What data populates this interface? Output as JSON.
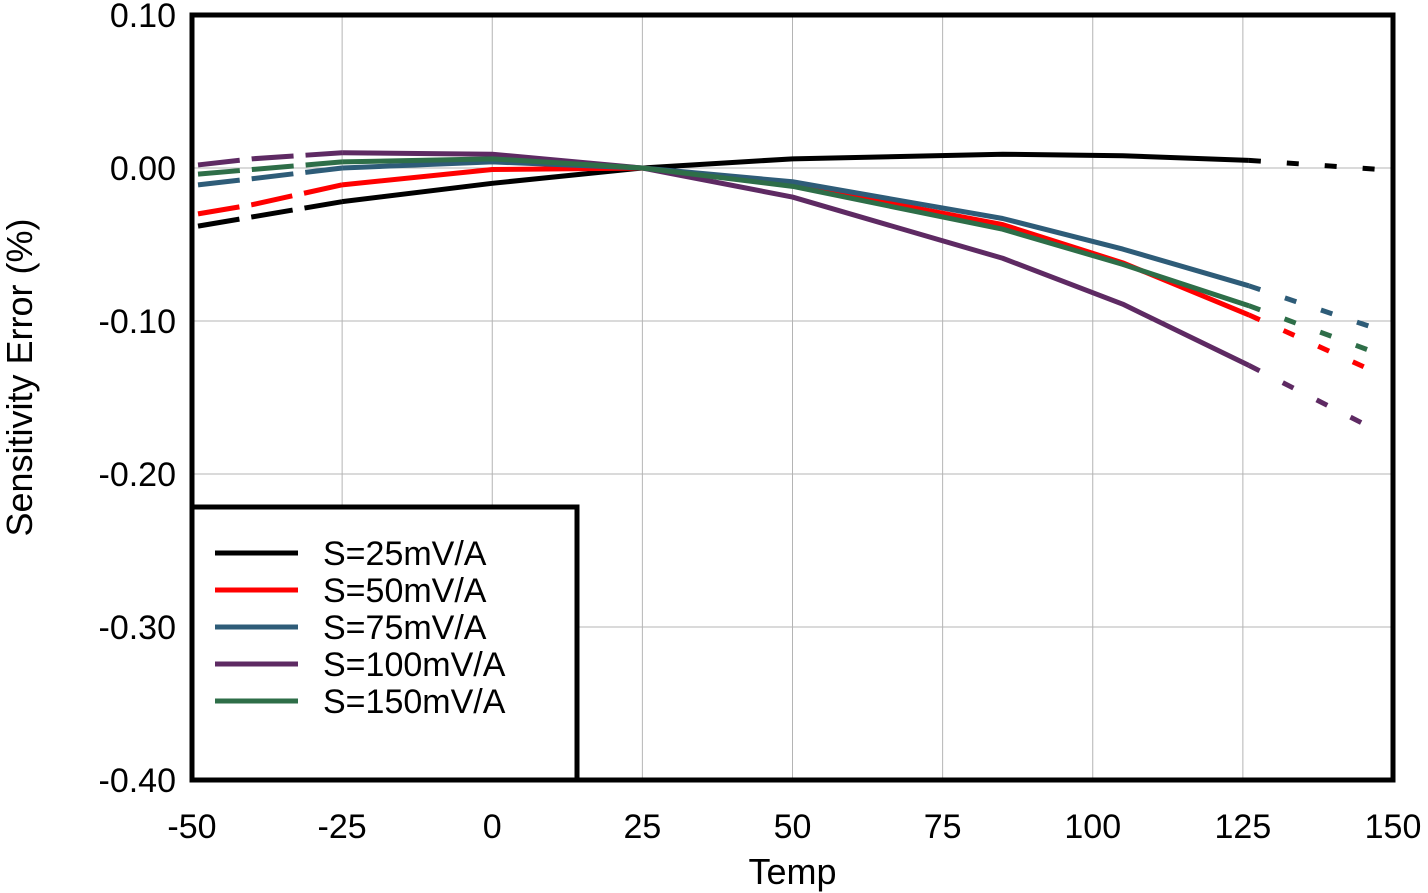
{
  "chart_data": {
    "type": "line",
    "title": "",
    "xlabel": "Temp",
    "ylabel": "Sensitivity Error (%)",
    "xlim": [
      -50,
      150
    ],
    "ylim": [
      -0.4,
      0.1
    ],
    "x_ticks": [
      -50,
      -25,
      0,
      25,
      50,
      75,
      100,
      125,
      150
    ],
    "x_tick_labels": [
      "-50",
      "-25",
      "0",
      "25",
      "50",
      "75",
      "100",
      "125",
      "150"
    ],
    "y_ticks": [
      0.1,
      0.0,
      -0.1,
      -0.2,
      -0.3,
      -0.4
    ],
    "y_tick_labels": [
      "0.10",
      "0.00",
      "-0.10",
      "-0.20",
      "-0.30",
      "-0.40"
    ],
    "grid": true,
    "legend_position": "bottom-left",
    "series": [
      {
        "name": "S=25mV/A",
        "color": "#000000",
        "solid": {
          "x": [
            -25,
            0,
            25,
            50,
            85,
            105,
            126
          ],
          "y": [
            -0.022,
            -0.01,
            0.0,
            0.006,
            0.009,
            0.008,
            0.005
          ]
        },
        "extrap_low": {
          "x": [
            -49,
            -40
          ],
          "y": [
            -0.038,
            -0.032
          ]
        },
        "extrap_high": {
          "x": [
            126,
            148
          ],
          "y": [
            0.005,
            -0.001
          ]
        }
      },
      {
        "name": "S=50mV/A",
        "color": "#ff0000",
        "solid": {
          "x": [
            -25,
            0,
            25,
            50,
            85,
            105,
            126
          ],
          "y": [
            -0.011,
            -0.001,
            0.0,
            -0.011,
            -0.037,
            -0.062,
            -0.096
          ]
        },
        "extrap_low": {
          "x": [
            -49,
            -40
          ],
          "y": [
            -0.03,
            -0.024
          ]
        },
        "extrap_high": {
          "x": [
            126,
            148
          ],
          "y": [
            -0.096,
            -0.135
          ]
        }
      },
      {
        "name": "S=75mV/A",
        "color": "#2e5c78",
        "solid": {
          "x": [
            -25,
            0,
            25,
            50,
            85,
            105,
            126
          ],
          "y": [
            0.0,
            0.004,
            0.0,
            -0.009,
            -0.033,
            -0.053,
            -0.077
          ]
        },
        "extrap_low": {
          "x": [
            -49,
            -40
          ],
          "y": [
            -0.011,
            -0.007
          ]
        },
        "extrap_high": {
          "x": [
            126,
            148
          ],
          "y": [
            -0.077,
            -0.106
          ]
        }
      },
      {
        "name": "S=100mV/A",
        "color": "#5e2a63",
        "solid": {
          "x": [
            -25,
            0,
            25,
            50,
            85,
            105,
            126
          ],
          "y": [
            0.01,
            0.009,
            0.0,
            -0.019,
            -0.059,
            -0.089,
            -0.129
          ]
        },
        "extrap_low": {
          "x": [
            -49,
            -40
          ],
          "y": [
            0.002,
            0.006
          ]
        },
        "extrap_high": {
          "x": [
            126,
            148
          ],
          "y": [
            -0.129,
            -0.173
          ]
        }
      },
      {
        "name": "S=150mV/A",
        "color": "#2e6e48",
        "solid": {
          "x": [
            -25,
            0,
            25,
            50,
            85,
            105,
            126
          ],
          "y": [
            0.004,
            0.006,
            0.0,
            -0.012,
            -0.04,
            -0.063,
            -0.09
          ]
        },
        "extrap_low": {
          "x": [
            -49,
            -40
          ],
          "y": [
            -0.004,
            -0.001
          ]
        },
        "extrap_high": {
          "x": [
            126,
            148
          ],
          "y": [
            -0.09,
            -0.122
          ]
        }
      }
    ]
  }
}
